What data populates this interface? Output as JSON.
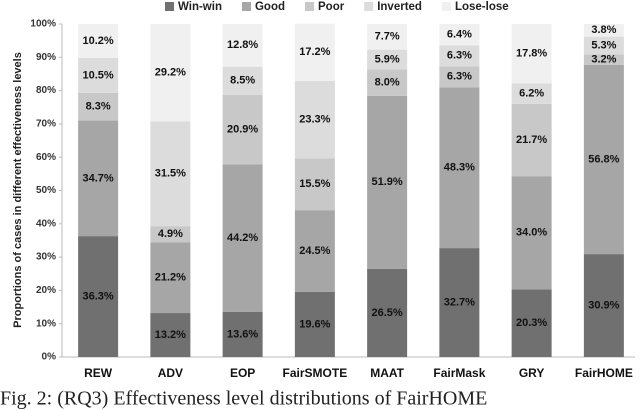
{
  "chart_data": {
    "type": "stacked_bar",
    "y_label": "Proportions of cases in different effectiveness levels",
    "caption": "Fig. 2: (RQ3) Effectiveness level distributions of FairHOME",
    "categories": [
      "REW",
      "ADV",
      "EOP",
      "FairSMOTE",
      "MAAT",
      "FairMask",
      "GRY",
      "FairHOME"
    ],
    "series": [
      {
        "name": "Win-win",
        "color": "#707070",
        "values": [
          36.3,
          13.2,
          13.6,
          19.6,
          26.5,
          32.7,
          20.3,
          30.9
        ],
        "value_labels": [
          "36.3%",
          "13.2%",
          "13.6%",
          "19.6%",
          "26.5%",
          "32.7%",
          "20.3%",
          "30.9%"
        ]
      },
      {
        "name": "Good",
        "color": "#a6a6a6",
        "values": [
          34.7,
          21.2,
          44.2,
          24.5,
          51.9,
          48.3,
          34.0,
          56.8
        ],
        "value_labels": [
          "34.7%",
          "21.2%",
          "44.2%",
          "24.5%",
          "51.9%",
          "48.3%",
          "34.0%",
          "56.8%"
        ]
      },
      {
        "name": "Poor",
        "color": "#c8c8c8",
        "values": [
          8.3,
          4.9,
          20.9,
          15.5,
          8.0,
          6.3,
          21.7,
          3.2
        ],
        "value_labels": [
          "8.3%",
          "4.9%",
          "20.9%",
          "15.5%",
          "8.0%",
          "6.3%",
          "21.7%",
          "3.2%"
        ]
      },
      {
        "name": "Inverted",
        "color": "#dcdcdc",
        "values": [
          10.5,
          31.5,
          8.5,
          23.3,
          5.9,
          6.3,
          6.2,
          5.3
        ],
        "value_labels": [
          "10.5%",
          "31.5%",
          "8.5%",
          "23.3%",
          "5.9%",
          "6.3%",
          "6.2%",
          "5.3%"
        ]
      },
      {
        "name": "Lose-lose",
        "color": "#f0f0f0",
        "values": [
          10.2,
          29.2,
          12.8,
          17.2,
          7.7,
          6.4,
          17.8,
          3.8
        ],
        "value_labels": [
          "10.2%",
          "29.2%",
          "12.8%",
          "17.2%",
          "7.7%",
          "6.4%",
          "17.8%",
          "3.8%"
        ]
      }
    ],
    "ylim": [
      0,
      100
    ],
    "yticks": [
      {
        "value": 0,
        "label": "0%"
      },
      {
        "value": 10,
        "label": "10%"
      },
      {
        "value": 20,
        "label": "20%"
      },
      {
        "value": 30,
        "label": "30%"
      },
      {
        "value": 40,
        "label": "40%"
      },
      {
        "value": 50,
        "label": "50%"
      },
      {
        "value": 60,
        "label": "60%"
      },
      {
        "value": 70,
        "label": "70%"
      },
      {
        "value": 80,
        "label": "80%"
      },
      {
        "value": 90,
        "label": "90%"
      },
      {
        "value": 100,
        "label": "100%"
      }
    ],
    "grid": false
  }
}
